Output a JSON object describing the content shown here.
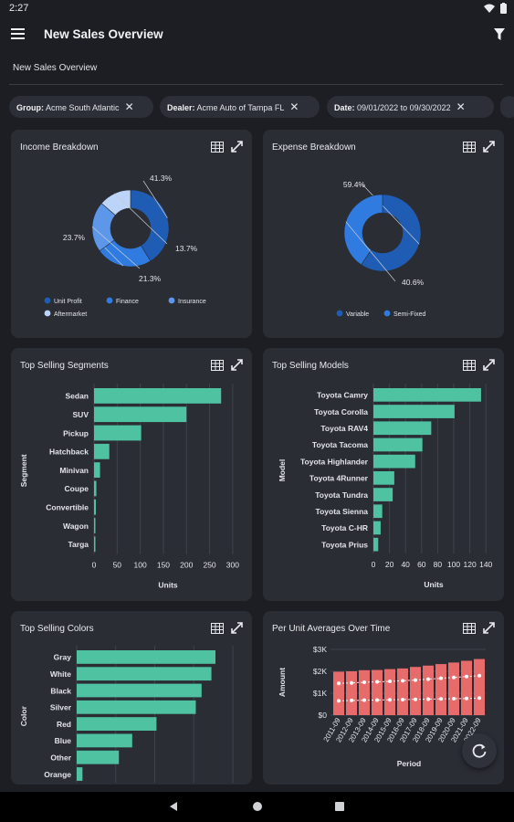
{
  "status": {
    "time": "2:27"
  },
  "appbar": {
    "title": "New Sales Overview",
    "menu_icon": "hamburger-menu-icon",
    "filter_icon": "filter-funnel-icon"
  },
  "subtitle": "New Sales Overview",
  "filters": [
    {
      "label": "Group:",
      "value": "Acme South Atlantic"
    },
    {
      "label": "Dealer:",
      "value": "Acme Auto of Tampa FL"
    },
    {
      "label": "Date:",
      "value": "09/01/2022 to 09/30/2022"
    }
  ],
  "cards": {
    "income": {
      "title": "Income Breakdown"
    },
    "expense": {
      "title": "Expense Breakdown"
    },
    "segments": {
      "title": "Top Selling Segments"
    },
    "models": {
      "title": "Top Selling Models"
    },
    "colors": {
      "title": "Top Selling Colors"
    },
    "averages": {
      "title": "Per Unit Averages Over Time"
    }
  },
  "colors": {
    "bar": "#4fc3a1",
    "donut_dark": "#1f5db5",
    "donut_mid": "#2f7be0",
    "donut_light": "#5c97ea",
    "donut_pale": "#bcd4f7",
    "ppu_bar": "#e86b6b"
  },
  "chart_data": [
    {
      "id": "income",
      "type": "pie",
      "categories": [
        "Unit Profit",
        "Finance",
        "Insurance",
        "Aftermarket"
      ],
      "values": [
        41.3,
        23.7,
        21.3,
        13.7
      ],
      "labels": [
        "41.3%",
        "23.7%",
        "21.3%",
        "13.7%"
      ],
      "legend": "bottom"
    },
    {
      "id": "expense",
      "type": "pie",
      "categories": [
        "Variable",
        "Semi-Fixed"
      ],
      "values": [
        59.4,
        40.6
      ],
      "labels": [
        "59.4%",
        "40.6%"
      ],
      "legend": "bottom"
    },
    {
      "id": "segments",
      "type": "bar",
      "orientation": "horizontal",
      "categories": [
        "Sedan",
        "SUV",
        "Pickup",
        "Hatchback",
        "Minivan",
        "Coupe",
        "Convertible",
        "Wagon",
        "Targa"
      ],
      "values": [
        275,
        200,
        102,
        33,
        13,
        5,
        4,
        2,
        1
      ],
      "xlabel": "Units",
      "ylabel": "Segment",
      "xlim": [
        0,
        320
      ],
      "xticks": [
        "0",
        "50",
        "100",
        "150",
        "200",
        "250",
        "300"
      ]
    },
    {
      "id": "models",
      "type": "bar",
      "orientation": "horizontal",
      "categories": [
        "Toyota Camry",
        "Toyota Corolla",
        "Toyota RAV4",
        "Toyota Tacoma",
        "Toyota Highlander",
        "Toyota 4Runner",
        "Toyota Tundra",
        "Toyota Sienna",
        "Toyota C-HR",
        "Toyota Prius"
      ],
      "values": [
        134,
        101,
        72,
        61,
        52,
        26,
        24,
        11,
        9,
        6
      ],
      "xlabel": "Units",
      "ylabel": "Model",
      "xlim": [
        0,
        150
      ],
      "xticks": [
        "0",
        "20",
        "40",
        "60",
        "80",
        "100",
        "120",
        "140"
      ]
    },
    {
      "id": "colors",
      "type": "bar",
      "orientation": "horizontal",
      "categories": [
        "Gray",
        "White",
        "Black",
        "Silver",
        "Red",
        "Blue",
        "Other",
        "Orange"
      ],
      "values": [
        240,
        233,
        216,
        206,
        138,
        96,
        73,
        10
      ],
      "ylabel": "Color",
      "xlim": [
        0,
        270
      ]
    },
    {
      "id": "averages",
      "type": "bar",
      "categories": [
        "2011-09",
        "2012-09",
        "2013-09",
        "2014-09",
        "2015-09",
        "2016-09",
        "2017-09",
        "2018-09",
        "2019-09",
        "2020-09",
        "2021-09",
        "2022-09"
      ],
      "values": [
        1980,
        2000,
        2050,
        2060,
        2100,
        2130,
        2200,
        2260,
        2330,
        2400,
        2480,
        2560
      ],
      "series_lines": [
        {
          "values": [
            1450,
            1470,
            1500,
            1520,
            1540,
            1570,
            1600,
            1640,
            1680,
            1720,
            1760,
            1800
          ]
        },
        {
          "values": [
            650,
            670,
            680,
            690,
            700,
            710,
            720,
            730,
            740,
            750,
            760,
            780
          ]
        }
      ],
      "xlabel": "Period",
      "ylabel": "Amount",
      "ylim": [
        0,
        3000
      ],
      "yticks": [
        "$0",
        "$1K",
        "$2K",
        "$3K"
      ]
    }
  ]
}
